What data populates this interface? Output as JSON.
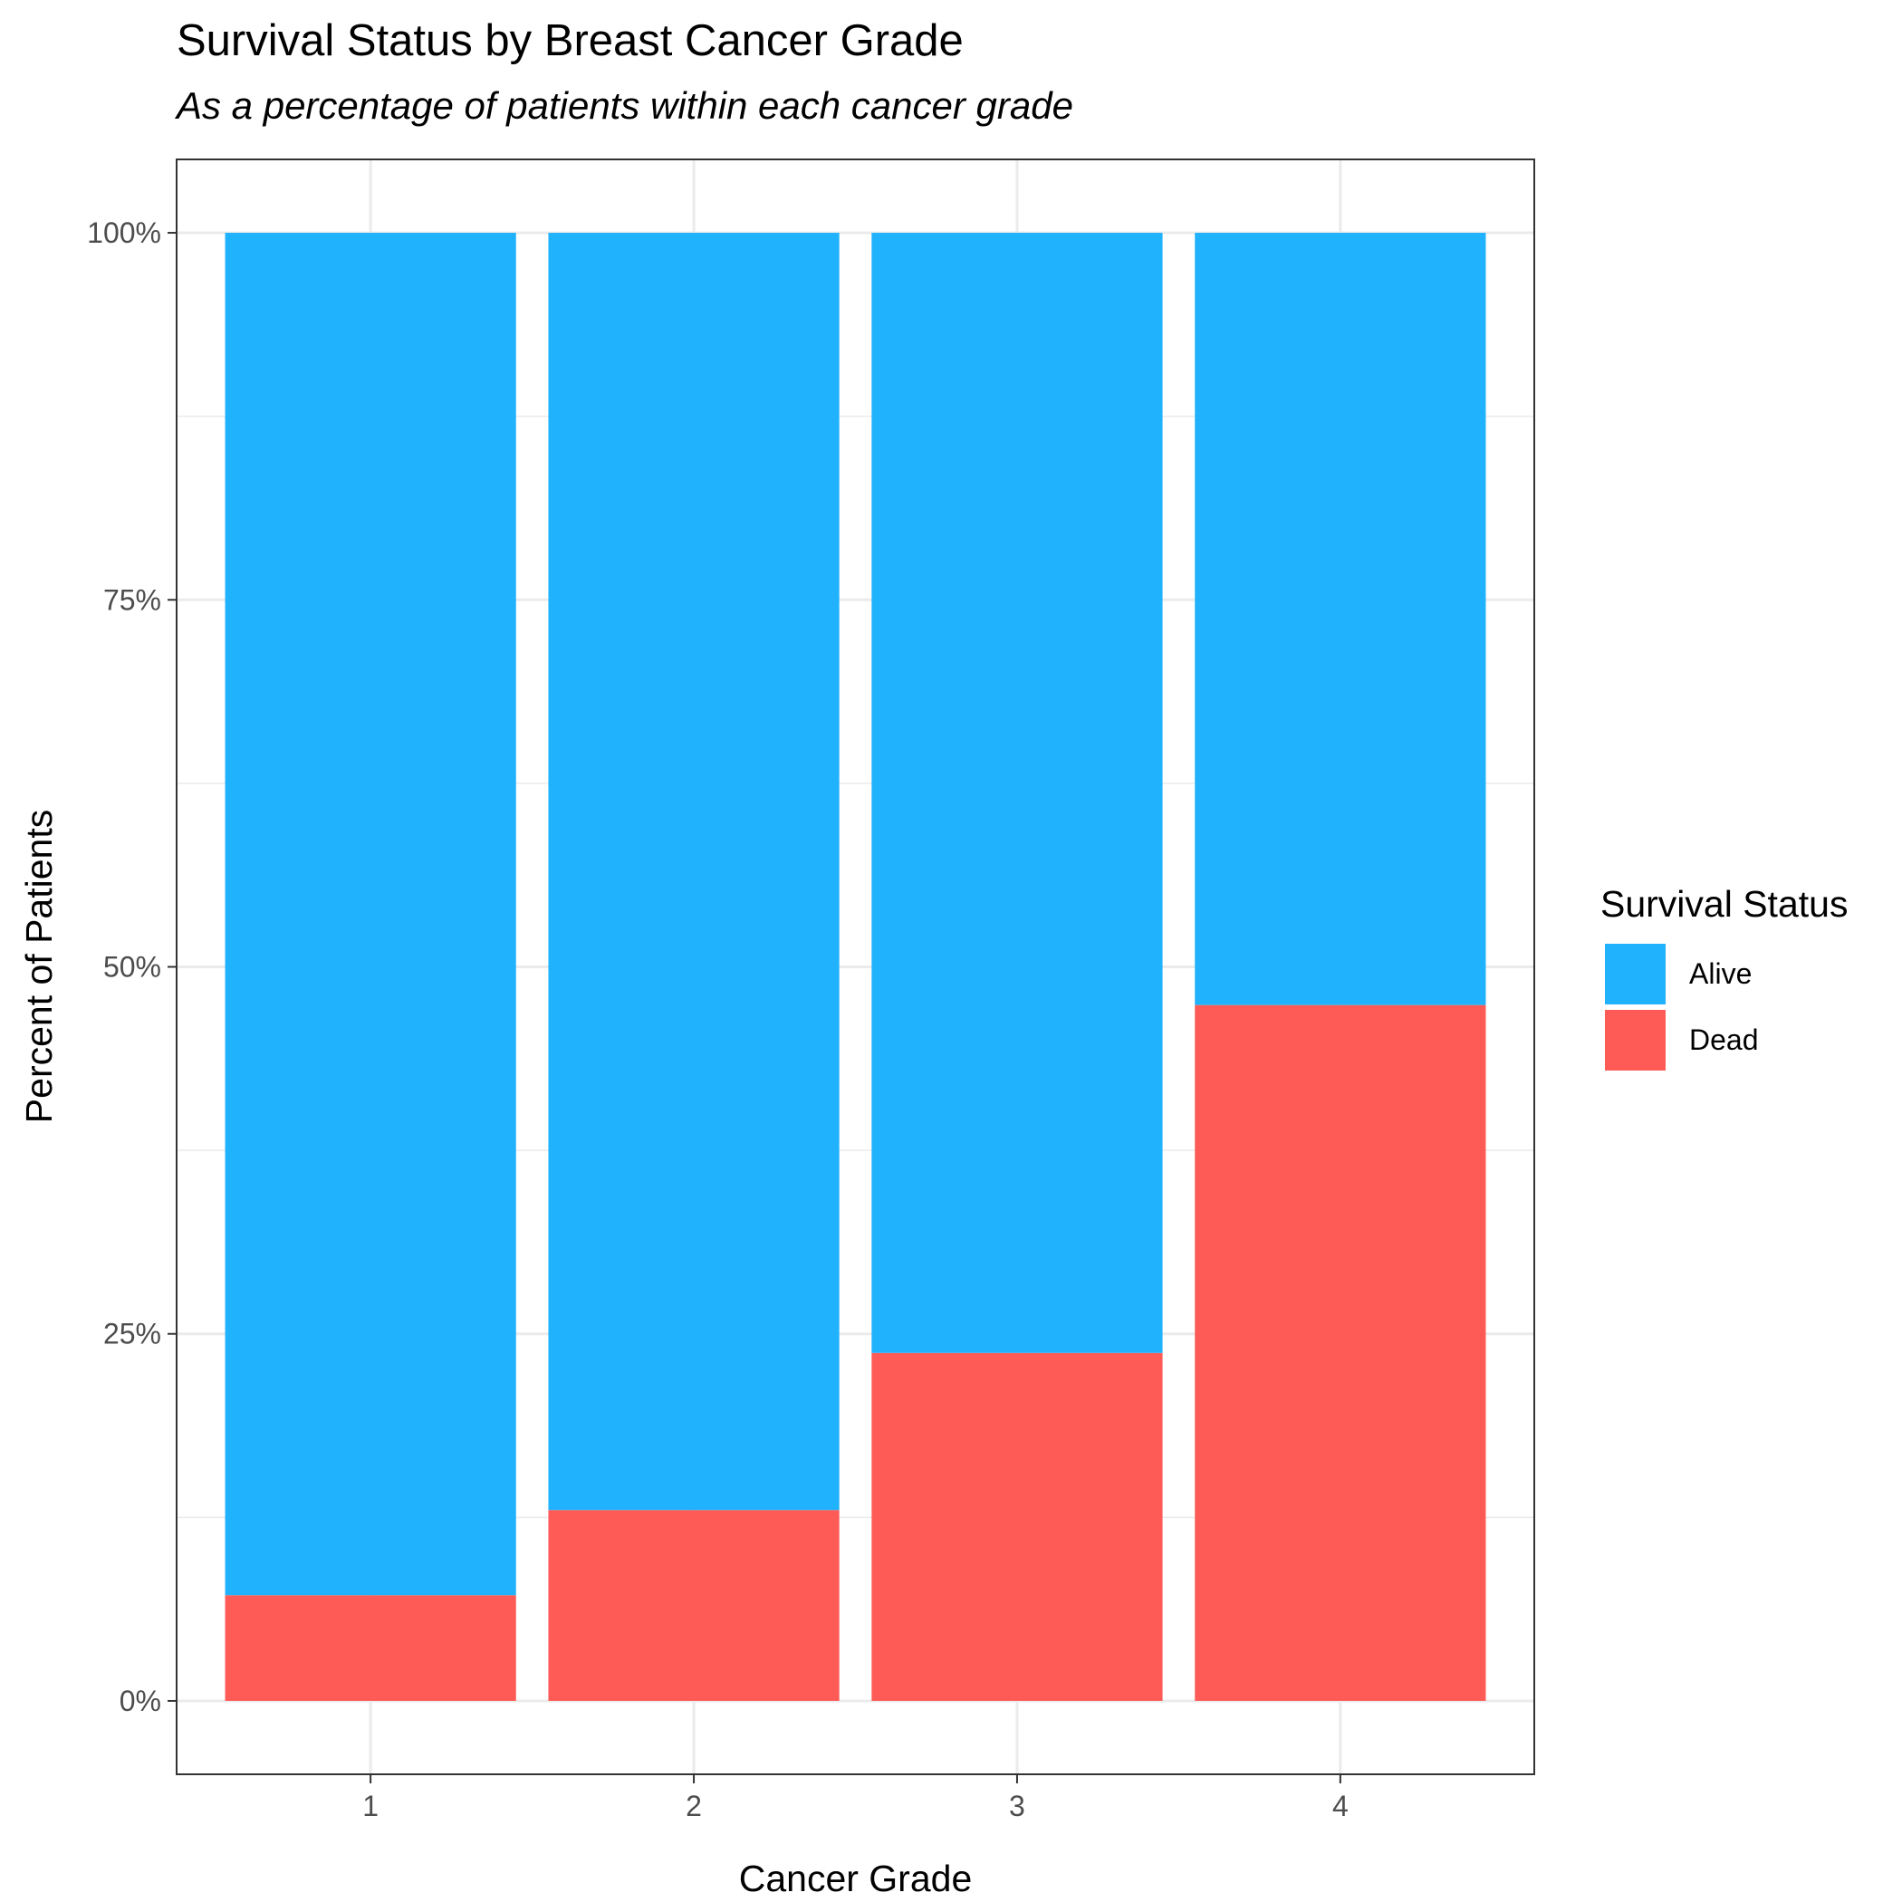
{
  "chart_data": {
    "type": "bar",
    "stacked": true,
    "title": "Survival Status by Breast Cancer Grade",
    "subtitle": "As a percentage of patients within each cancer grade",
    "xlabel": "Cancer Grade",
    "ylabel": "Percent of Patients",
    "categories": [
      "1",
      "2",
      "3",
      "4"
    ],
    "series": [
      {
        "name": "Alive",
        "color": "#20b2fd",
        "values": [
          92.8,
          87.0,
          76.3,
          52.6
        ]
      },
      {
        "name": "Dead",
        "color": "#fe5b56",
        "values": [
          7.2,
          13.0,
          23.7,
          47.4
        ]
      }
    ],
    "ylim": [
      -5,
      105
    ],
    "yticks": [
      0,
      25,
      50,
      75,
      100
    ],
    "ytick_labels": [
      "0%",
      "25%",
      "50%",
      "75%",
      "100%"
    ],
    "grid": true,
    "legend": {
      "title": "Survival Status",
      "position": "right"
    }
  }
}
